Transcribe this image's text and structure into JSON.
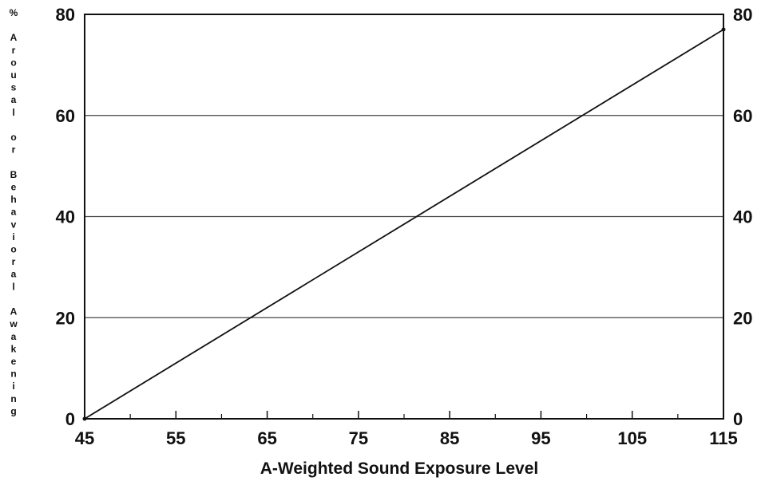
{
  "chart_data": {
    "type": "line",
    "title": "",
    "xlabel": "A-Weighted Sound Exposure Level",
    "ylabel": "% Arousal or Behavioral Awakening",
    "xlim": [
      45,
      115
    ],
    "ylim": [
      0,
      80
    ],
    "x_ticks": [
      45,
      55,
      65,
      75,
      85,
      95,
      105,
      115
    ],
    "y_ticks": [
      0,
      20,
      40,
      60,
      80
    ],
    "y2_ticks": [
      0,
      20,
      40,
      60,
      80
    ],
    "grid": {
      "horizontal": true,
      "vertical": false,
      "y_values": [
        20,
        40,
        60
      ]
    },
    "series": [
      {
        "x": [
          45,
          115
        ],
        "y": [
          0,
          77
        ],
        "color": "#111111"
      }
    ]
  }
}
